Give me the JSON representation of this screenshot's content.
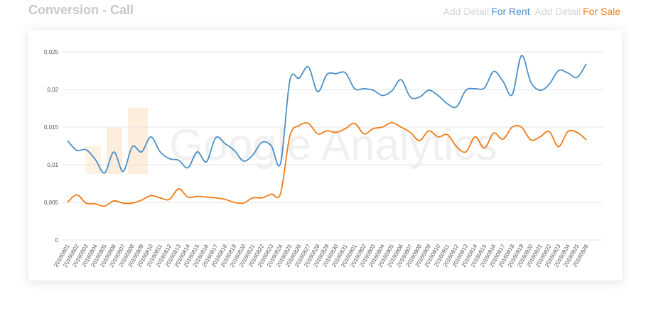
{
  "header": {
    "title": "Conversion - Call",
    "legend_prefix": "Add Detail"
  },
  "chart_data": {
    "type": "line",
    "watermark": "Google Analytics",
    "categories": [
      "20160801",
      "20160802",
      "20160803",
      "20160804",
      "20160805",
      "20160806",
      "20160807",
      "20160808",
      "20160809",
      "20160810",
      "20160811",
      "20160812",
      "20160813",
      "20160814",
      "20160815",
      "20160816",
      "20160817",
      "20160818",
      "20160819",
      "20160820",
      "20160821",
      "20160822",
      "20160823",
      "20160824",
      "20160825",
      "20160826",
      "20160827",
      "20160828",
      "20160829",
      "20160830",
      "20160831",
      "20160901",
      "20160902",
      "20160903",
      "20160904",
      "20160905",
      "20160906",
      "20160907",
      "20160908",
      "20160909",
      "20160910",
      "20160911",
      "20160912",
      "20160913",
      "20160914",
      "20160915",
      "20160916",
      "20160917",
      "20160918",
      "20160919",
      "20160920",
      "20160921",
      "20160922",
      "20160923",
      "20160924",
      "20160925",
      "20160926"
    ],
    "series": [
      {
        "name": "For Rent",
        "color": "#4a90c8",
        "values": [
          0.0132,
          0.0119,
          0.012,
          0.0107,
          0.0089,
          0.0117,
          0.0091,
          0.0124,
          0.0117,
          0.0137,
          0.0117,
          0.0108,
          0.0106,
          0.0096,
          0.0117,
          0.0104,
          0.0136,
          0.0128,
          0.0119,
          0.0105,
          0.0113,
          0.013,
          0.0125,
          0.0102,
          0.0212,
          0.0215,
          0.023,
          0.0197,
          0.022,
          0.0221,
          0.0222,
          0.0201,
          0.0201,
          0.0199,
          0.0192,
          0.0198,
          0.0213,
          0.019,
          0.019,
          0.0199,
          0.0192,
          0.0181,
          0.0177,
          0.0199,
          0.0201,
          0.0202,
          0.0224,
          0.0211,
          0.0193,
          0.0245,
          0.021,
          0.0199,
          0.0207,
          0.0225,
          0.0222,
          0.0216,
          0.0234
        ]
      },
      {
        "name": "For Sale",
        "color": "#f07b14",
        "values": [
          0.005,
          0.006,
          0.0049,
          0.0048,
          0.0045,
          0.0052,
          0.0049,
          0.0049,
          0.0053,
          0.0059,
          0.0056,
          0.0054,
          0.0068,
          0.0057,
          0.0058,
          0.0057,
          0.0056,
          0.0054,
          0.005,
          0.0049,
          0.0056,
          0.0056,
          0.0061,
          0.0062,
          0.0138,
          0.0152,
          0.0155,
          0.0141,
          0.0145,
          0.0143,
          0.0148,
          0.0155,
          0.0141,
          0.0148,
          0.015,
          0.0156,
          0.015,
          0.0143,
          0.0132,
          0.0145,
          0.0137,
          0.014,
          0.0124,
          0.0117,
          0.0137,
          0.0122,
          0.0142,
          0.0134,
          0.015,
          0.015,
          0.0133,
          0.0137,
          0.0144,
          0.0124,
          0.0144,
          0.0143,
          0.0133
        ]
      }
    ],
    "ylim": [
      0,
      0.025
    ],
    "yticks": [
      0,
      {
        "value": 0.005,
        "label": "0,005"
      },
      {
        "value": 0.01,
        "label": "0,01"
      },
      {
        "value": 0.015,
        "label": "0,015"
      },
      {
        "value": 0.02,
        "label": "0,02"
      },
      {
        "value": 0.025,
        "label": "0,025"
      }
    ],
    "grid": true
  }
}
